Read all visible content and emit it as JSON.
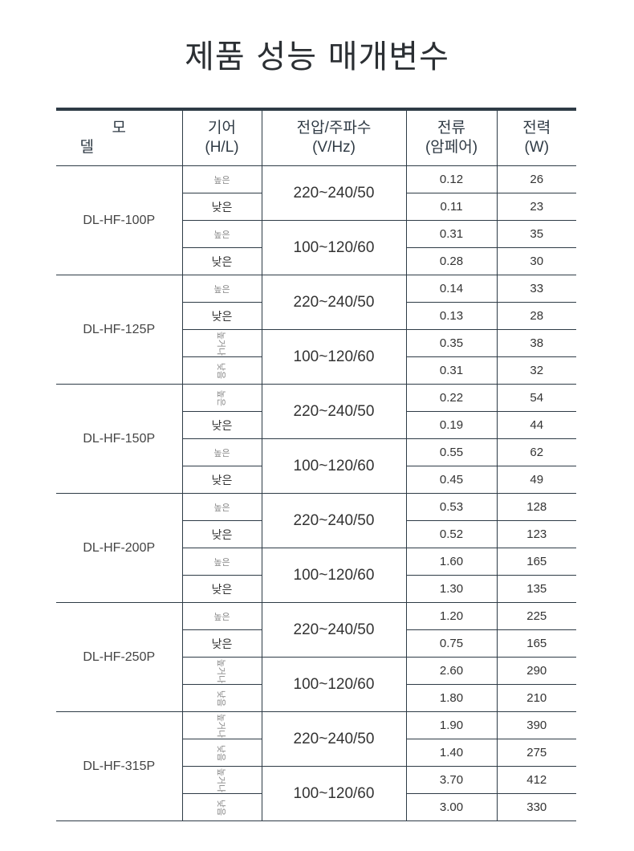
{
  "title": "제품 성능 매개변수",
  "headers": {
    "model": [
      "모",
      "델"
    ],
    "gear": [
      "기어",
      "(H/L)"
    ],
    "voltage": [
      "전압/주파수",
      "(V/Hz)"
    ],
    "current": [
      "전류",
      "(암페어)"
    ],
    "power": [
      "전력",
      "(W)"
    ]
  },
  "models": [
    {
      "name": "DL-HF-100P",
      "groups": [
        {
          "voltage": "220~240/50",
          "rows": [
            {
              "gear": "높은",
              "style": "faint",
              "current": "0.12",
              "power": "26"
            },
            {
              "gear": "낮은",
              "style": "normal",
              "current": "0.11",
              "power": "23"
            }
          ]
        },
        {
          "voltage": "100~120/60",
          "rows": [
            {
              "gear": "높은",
              "style": "faint",
              "current": "0.31",
              "power": "35"
            },
            {
              "gear": "낮은",
              "style": "normal",
              "current": "0.28",
              "power": "30"
            }
          ]
        }
      ]
    },
    {
      "name": "DL-HF-125P",
      "groups": [
        {
          "voltage": "220~240/50",
          "rows": [
            {
              "gear": "높은",
              "style": "faint",
              "current": "0.14",
              "power": "33"
            },
            {
              "gear": "낮은",
              "style": "normal",
              "current": "0.13",
              "power": "28"
            }
          ]
        },
        {
          "voltage": "100~120/60",
          "rows": [
            {
              "gear": "높거나",
              "style": "rotated",
              "current": "0.35",
              "power": "38"
            },
            {
              "gear": "낮음",
              "style": "rotated",
              "current": "0.31",
              "power": "32"
            }
          ]
        }
      ]
    },
    {
      "name": "DL-HF-150P",
      "groups": [
        {
          "voltage": "220~240/50",
          "rows": [
            {
              "gear": "높은",
              "style": "rotated",
              "current": "0.22",
              "power": "54"
            },
            {
              "gear": "낮은",
              "style": "normal",
              "current": "0.19",
              "power": "44"
            }
          ]
        },
        {
          "voltage": "100~120/60",
          "rows": [
            {
              "gear": "높은",
              "style": "faint",
              "current": "0.55",
              "power": "62"
            },
            {
              "gear": "낮은",
              "style": "normal",
              "current": "0.45",
              "power": "49"
            }
          ]
        }
      ]
    },
    {
      "name": "DL-HF-200P",
      "groups": [
        {
          "voltage": "220~240/50",
          "rows": [
            {
              "gear": "높은",
              "style": "faint",
              "current": "0.53",
              "power": "128"
            },
            {
              "gear": "낮은",
              "style": "normal",
              "current": "0.52",
              "power": "123"
            }
          ]
        },
        {
          "voltage": "100~120/60",
          "rows": [
            {
              "gear": "높은",
              "style": "faint",
              "current": "1.60",
              "power": "165"
            },
            {
              "gear": "낮은",
              "style": "normal",
              "current": "1.30",
              "power": "135"
            }
          ]
        }
      ]
    },
    {
      "name": "DL-HF-250P",
      "groups": [
        {
          "voltage": "220~240/50",
          "rows": [
            {
              "gear": "높은",
              "style": "faint",
              "current": "1.20",
              "power": "225"
            },
            {
              "gear": "낮은",
              "style": "normal",
              "current": "0.75",
              "power": "165"
            }
          ]
        },
        {
          "voltage": "100~120/60",
          "rows": [
            {
              "gear": "높거나",
              "style": "rotated",
              "current": "2.60",
              "power": "290"
            },
            {
              "gear": "낮음",
              "style": "rotated",
              "current": "1.80",
              "power": "210"
            }
          ]
        }
      ]
    },
    {
      "name": "DL-HF-315P",
      "groups": [
        {
          "voltage": "220~240/50",
          "rows": [
            {
              "gear": "높거나",
              "style": "rotated",
              "current": "1.90",
              "power": "390"
            },
            {
              "gear": "낮음",
              "style": "rotated",
              "current": "1.40",
              "power": "275"
            }
          ]
        },
        {
          "voltage": "100~120/60",
          "rows": [
            {
              "gear": "높거나",
              "style": "rotated",
              "current": "3.70",
              "power": "412"
            },
            {
              "gear": "낮음",
              "style": "rotated",
              "current": "3.00",
              "power": "330"
            }
          ]
        }
      ]
    }
  ]
}
